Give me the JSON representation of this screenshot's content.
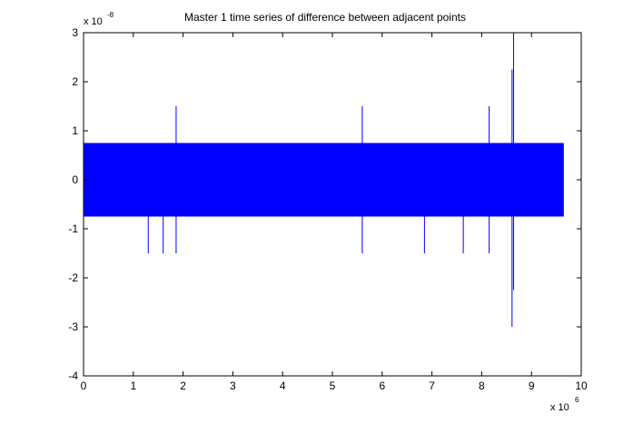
{
  "chart_data": {
    "type": "line",
    "title": "Master 1 time series of difference between adjacent points",
    "xlabel": "",
    "ylabel": "",
    "x_multiplier_label": {
      "base": "x 10",
      "exponent": "6"
    },
    "y_multiplier_label": {
      "base": "x 10",
      "exponent": "-8"
    },
    "xlim": [
      0,
      10
    ],
    "ylim": [
      -4,
      3
    ],
    "x_ticks": [
      0,
      1,
      2,
      3,
      4,
      5,
      6,
      7,
      8,
      9,
      10
    ],
    "y_ticks": [
      -4,
      -3,
      -2,
      -1,
      0,
      1,
      2,
      3
    ],
    "grid": false,
    "series": [
      {
        "color": "#0000ff",
        "dense_band": {
          "x_start": 0,
          "x_end": 9.65,
          "y_min": -0.75,
          "y_max": 0.75
        },
        "spikes": [
          {
            "x": 1.3,
            "y_min": -1.5,
            "y_max": 0
          },
          {
            "x": 1.6,
            "y_min": -1.5,
            "y_max": 0
          },
          {
            "x": 1.86,
            "y_min": -1.5,
            "y_max": 1.5
          },
          {
            "x": 5.6,
            "y_min": -1.5,
            "y_max": 1.5
          },
          {
            "x": 6.85,
            "y_min": -1.5,
            "y_max": 0
          },
          {
            "x": 7.63,
            "y_min": -1.5,
            "y_max": 0
          },
          {
            "x": 8.15,
            "y_min": -1.5,
            "y_max": 1.5
          },
          {
            "x": 8.61,
            "y_min": -3.0,
            "y_max": 2.25
          },
          {
            "x": 8.64,
            "y_min": -2.25,
            "y_max": 3.0
          }
        ]
      }
    ]
  }
}
